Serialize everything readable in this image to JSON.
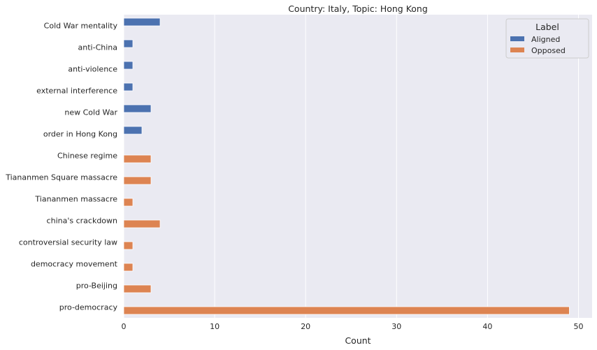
{
  "chart_data": {
    "type": "bar",
    "orientation": "horizontal",
    "title": "Country: Italy, Topic: Hong Kong",
    "xlabel": "Count",
    "ylabel": "",
    "xlim": [
      0,
      51.5
    ],
    "xticks": [
      0,
      10,
      20,
      30,
      40,
      50
    ],
    "grid": true,
    "categories": [
      "Cold War mentality",
      "anti-China",
      "anti-violence",
      "external interference",
      "new Cold War",
      "order in Hong Kong",
      "Chinese regime",
      "Tiananmen Square massacre",
      "Tiananmen massacre",
      "china's crackdown",
      "controversial security law",
      "democracy movement",
      "pro-Beijing",
      "pro-democracy"
    ],
    "series": [
      {
        "name": "Aligned",
        "color": "#4c72b0",
        "values": [
          4,
          1,
          1,
          1,
          3,
          2,
          null,
          null,
          null,
          null,
          null,
          null,
          null,
          null
        ]
      },
      {
        "name": "Opposed",
        "color": "#dd8452",
        "values": [
          null,
          null,
          null,
          null,
          null,
          null,
          3,
          3,
          1,
          4,
          1,
          1,
          3,
          49
        ]
      }
    ],
    "legend": {
      "title": "Label",
      "position": "top-right"
    }
  },
  "colors": {
    "plot_background": "#eaeaf2",
    "grid": "#ffffff"
  }
}
